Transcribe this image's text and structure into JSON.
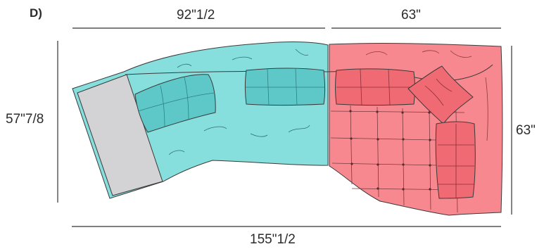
{
  "panel_label": "D)",
  "dimensions": {
    "top_left_width": "92\"1/2",
    "top_right_width": "63\"",
    "left_depth": "57\"7/8",
    "right_depth": "63\"",
    "overall_width": "155\"1/2"
  },
  "colors": {
    "teal_section": "#86dedd",
    "teal_cushion": "#5ec8c8",
    "red_section": "#f8888f",
    "red_cushion": "#f06a73",
    "chaise_panel": "#d3d3d5",
    "outline": "#3a3a3a"
  }
}
